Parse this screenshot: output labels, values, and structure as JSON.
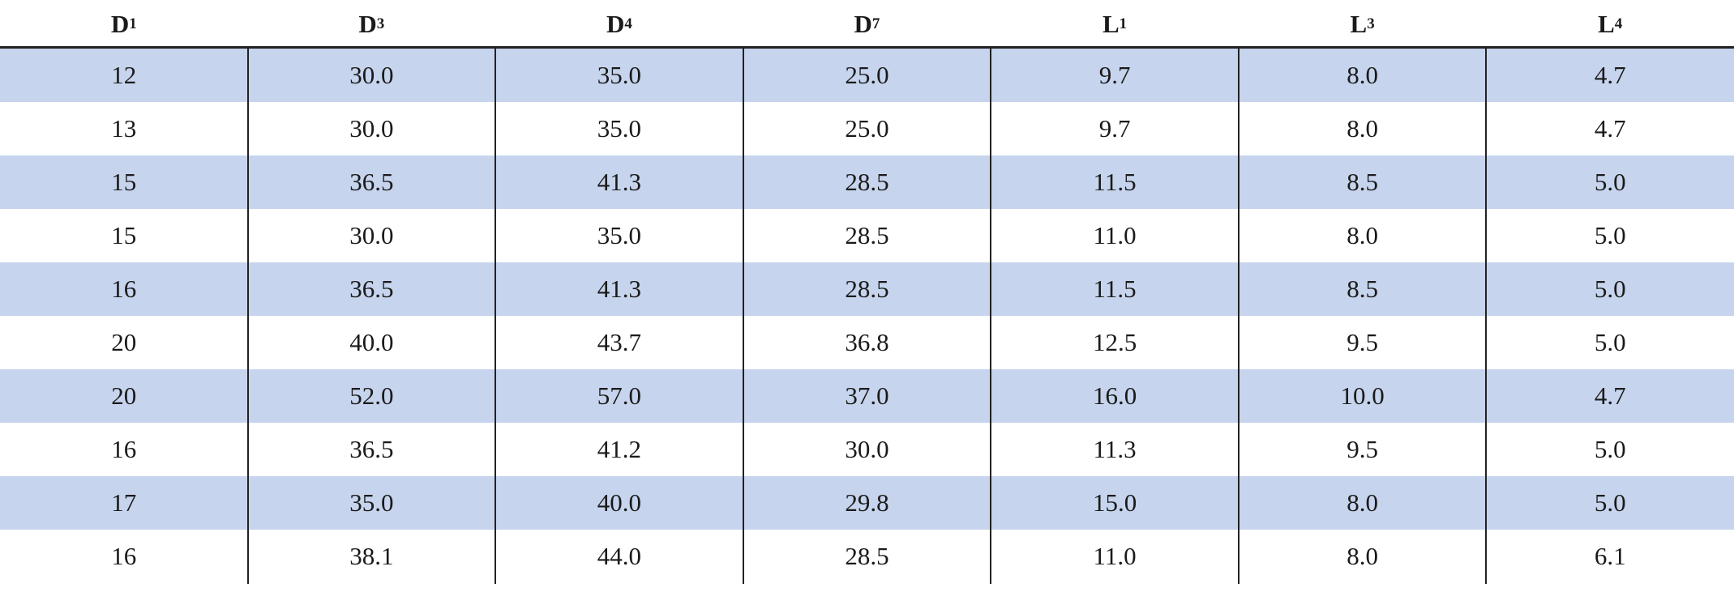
{
  "table": {
    "header": [
      {
        "main": "D",
        "sub": "1"
      },
      {
        "main": "D",
        "sub": "3"
      },
      {
        "main": "D",
        "sub": "4"
      },
      {
        "main": "D",
        "sub": "7"
      },
      {
        "main": "L",
        "sub": "1"
      },
      {
        "main": "L",
        "sub": "3"
      },
      {
        "main": "L",
        "sub": "4"
      }
    ],
    "rows": [
      [
        "12",
        "30.0",
        "35.0",
        "25.0",
        "9.7",
        "8.0",
        "4.7"
      ],
      [
        "13",
        "30.0",
        "35.0",
        "25.0",
        "9.7",
        "8.0",
        "4.7"
      ],
      [
        "15",
        "36.5",
        "41.3",
        "28.5",
        "11.5",
        "8.5",
        "5.0"
      ],
      [
        "15",
        "30.0",
        "35.0",
        "28.5",
        "11.0",
        "8.0",
        "5.0"
      ],
      [
        "16",
        "36.5",
        "41.3",
        "28.5",
        "11.5",
        "8.5",
        "5.0"
      ],
      [
        "20",
        "40.0",
        "43.7",
        "36.8",
        "12.5",
        "9.5",
        "5.0"
      ],
      [
        "20",
        "52.0",
        "57.0",
        "37.0",
        "16.0",
        "10.0",
        "4.7"
      ],
      [
        "16",
        "36.5",
        "41.2",
        "30.0",
        "11.3",
        "9.5",
        "5.0"
      ],
      [
        "17",
        "35.0",
        "40.0",
        "29.8",
        "15.0",
        "8.0",
        "5.0"
      ],
      [
        "16",
        "38.1",
        "44.0",
        "28.5",
        "11.0",
        "8.0",
        "6.1"
      ]
    ]
  }
}
